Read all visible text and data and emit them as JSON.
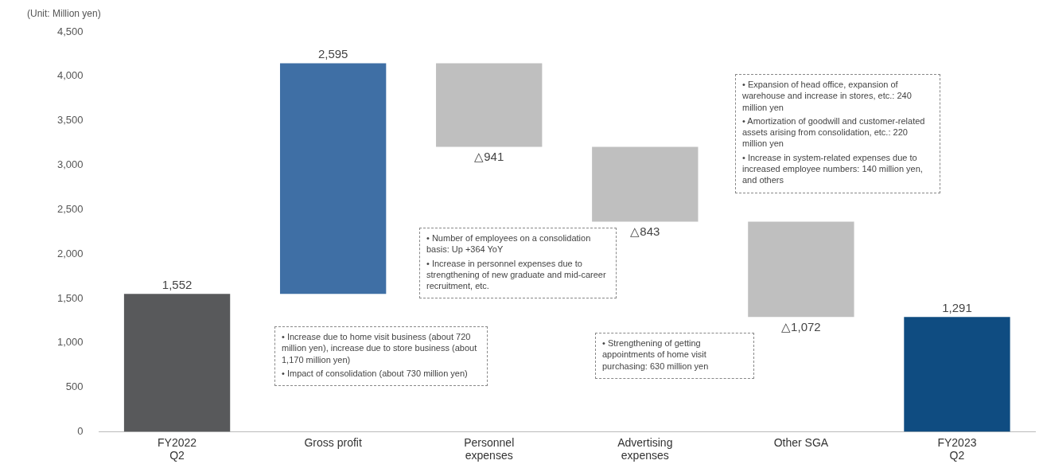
{
  "chart_data": {
    "type": "bar",
    "ylabel": "(Unit: Million yen)",
    "categories": [
      "FY2022\nQ2",
      "Gross profit",
      "Personnel\nexpenses",
      "Advertising\nexpenses",
      "Other SGA",
      "FY2023\nQ2"
    ],
    "base": [
      0,
      1552,
      4147,
      3206,
      2363,
      0
    ],
    "values": [
      1552,
      2595,
      -941,
      -843,
      -1072,
      1291
    ],
    "value_labels": [
      "1,552",
      "2,595",
      "△941",
      "△843",
      "△1,072",
      "1,291"
    ],
    "colors": [
      "#58595b",
      "#3f6fa5",
      "#bfbfbf",
      "#bfbfbf",
      "#bfbfbf",
      "#0f4c81"
    ],
    "ylim": [
      0,
      4500
    ],
    "yticks": [
      0,
      500,
      {
        "value": 1000,
        "label": "1,000"
      },
      {
        "value": 1500,
        "label": "1,500"
      },
      {
        "value": 2000,
        "label": "2,000"
      },
      {
        "value": 2500,
        "label": "2,500"
      },
      {
        "value": 3000,
        "label": "3,000"
      },
      {
        "value": 3500,
        "label": "3,500"
      },
      {
        "value": 4000,
        "label": "4,000"
      },
      {
        "value": 4500,
        "label": "4,500"
      }
    ],
    "grid": false,
    "legend": false,
    "annotations": [
      "• Increase due to home visit business (about 720 million yen), increase due to store business (about 1,170 million yen)",
      "• Impact of consolidation (about 730 million yen)",
      "• Number of employees on a consolidation basis: Up +364 YoY",
      "• Increase in personnel expenses due to strengthening of new graduate and mid-career recruitment, etc.",
      "• Strengthening of getting appointments of home visit purchasing: 630 million yen",
      "• Expansion of head office, expansion of warehouse and increase in stores, etc.: 240 million yen",
      "• Amortization of goodwill and customer-related assets arising from consolidation, etc.: 220 million yen",
      "• Increase in system-related expenses due to increased employee numbers: 140 million yen, and others"
    ]
  }
}
